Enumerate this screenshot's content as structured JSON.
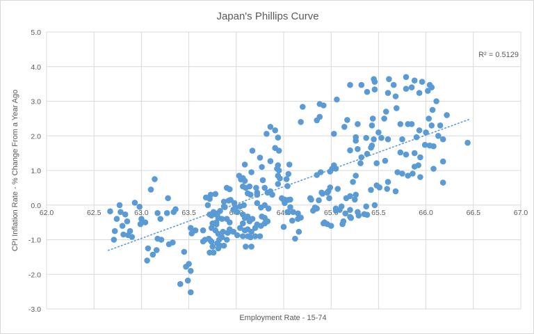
{
  "chart": {
    "title": "Japan's Phillips Curve",
    "xlabel": "Employment Rate - 15-74",
    "ylabel": "CPI Inflation Rate - % Change From a Year Ago",
    "r_squared_label": "R² = 0.5129"
  },
  "chart_data": {
    "type": "scatter",
    "title": "Japan's Phillips Curve",
    "xlabel": "Employment Rate - 15-74",
    "ylabel": "CPI Inflation Rate - % Change From a Year Ago",
    "xlim": [
      62.0,
      67.0
    ],
    "ylim": [
      -3.0,
      5.0
    ],
    "x_ticks": [
      "62.0",
      "62.5",
      "63.0",
      "63.5",
      "64.0",
      "64.5",
      "65.0",
      "65.5",
      "66.0",
      "66.5",
      "67.0"
    ],
    "y_ticks": [
      "5.0",
      "4.0",
      "3.0",
      "2.0",
      "1.0",
      "0.0",
      "-1.0",
      "-2.0",
      "-3.0"
    ],
    "grid": true,
    "legend": "none",
    "point_color": "#5B9BD5",
    "gridline_color": "#D9D9D9",
    "text_color": "#595959",
    "r_squared": 0.5129,
    "annotation": "R² = 0.5129",
    "trendline": {
      "style": "dotted",
      "color": "#5B9BD5",
      "x_start": 62.65,
      "y_start": -1.31,
      "x_end": 66.46,
      "y_end": 2.48
    },
    "points": [
      [
        62.67,
        -0.18
      ],
      [
        62.74,
        -0.4
      ],
      [
        62.71,
        -1.0
      ],
      [
        62.72,
        -0.75
      ],
      [
        62.77,
        0.0
      ],
      [
        62.78,
        -0.2
      ],
      [
        62.8,
        -0.6
      ],
      [
        62.81,
        -0.85
      ],
      [
        62.83,
        -0.27
      ],
      [
        62.85,
        -0.47
      ],
      [
        62.86,
        -0.87
      ],
      [
        62.88,
        -0.75
      ],
      [
        62.9,
        -0.92
      ],
      [
        62.93,
        0.07
      ],
      [
        62.98,
        -0.05
      ],
      [
        62.99,
        -0.55
      ],
      [
        63.0,
        -0.4
      ],
      [
        63.04,
        -0.5
      ],
      [
        63.06,
        -1.6
      ],
      [
        63.07,
        -1.25
      ],
      [
        63.12,
        -1.43
      ],
      [
        63.16,
        -1.3
      ],
      [
        63.17,
        -0.97
      ],
      [
        63.1,
        0.45
      ],
      [
        63.14,
        0.75
      ],
      [
        63.17,
        -0.23
      ],
      [
        63.2,
        -0.4
      ],
      [
        63.21,
        -1.0
      ],
      [
        63.27,
        -0.23
      ],
      [
        63.28,
        0.2
      ],
      [
        63.29,
        -1.13
      ],
      [
        63.33,
        -1.08
      ],
      [
        63.34,
        -0.2
      ],
      [
        63.36,
        -0.12
      ],
      [
        63.41,
        -2.28
      ],
      [
        63.45,
        -1.35
      ],
      [
        63.47,
        -1.78
      ],
      [
        63.49,
        -2.18
      ],
      [
        63.5,
        -1.7
      ],
      [
        63.52,
        -1.9
      ],
      [
        63.52,
        -2.52
      ],
      [
        63.52,
        -0.66
      ],
      [
        63.53,
        -0.82
      ],
      [
        63.57,
        -0.73
      ],
      [
        63.65,
        -0.73
      ],
      [
        63.65,
        -1.05
      ],
      [
        63.67,
        -1.0
      ],
      [
        63.71,
        -0.97
      ],
      [
        63.68,
        0.22
      ],
      [
        63.73,
        0.3
      ],
      [
        63.7,
        0.0
      ],
      [
        63.74,
        -0.3
      ],
      [
        63.78,
        -0.26
      ],
      [
        63.79,
        -0.56
      ],
      [
        63.78,
        -0.73
      ],
      [
        63.81,
        -0.83
      ],
      [
        63.73,
        -1.03
      ],
      [
        63.75,
        -1.2
      ],
      [
        63.81,
        -1.25
      ],
      [
        63.82,
        -1.0
      ],
      [
        63.83,
        -1.17
      ],
      [
        63.87,
        -1.17
      ],
      [
        63.74,
        -1.06
      ],
      [
        63.8,
        -1.1
      ],
      [
        63.72,
        -1.37
      ],
      [
        63.76,
        -1.37
      ],
      [
        63.87,
        0.1
      ],
      [
        63.87,
        -0.04
      ],
      [
        63.9,
        -0.4
      ],
      [
        63.93,
        -0.5
      ],
      [
        63.94,
        -0.75
      ],
      [
        63.97,
        -0.13
      ],
      [
        63.9,
        0.5
      ],
      [
        63.93,
        0.46
      ],
      [
        63.78,
        0.32
      ],
      [
        63.88,
        -0.06
      ],
      [
        63.92,
        0.13
      ],
      [
        63.94,
        0.15
      ],
      [
        63.98,
        0.06
      ],
      [
        63.99,
        -0.07
      ],
      [
        63.97,
        -0.77
      ],
      [
        63.93,
        -0.7
      ],
      [
        63.91,
        -0.8
      ],
      [
        63.86,
        -0.77
      ],
      [
        63.74,
        -0.66
      ],
      [
        63.85,
        -0.93
      ],
      [
        63.9,
        -1.0
      ],
      [
        63.8,
        -0.27
      ],
      [
        63.83,
        -0.17
      ],
      [
        63.76,
        -0.2
      ],
      [
        63.72,
        -0.27
      ],
      [
        63.81,
        -0.37
      ],
      [
        63.85,
        -0.4
      ],
      [
        63.79,
        -0.5
      ],
      [
        63.75,
        -0.53
      ],
      [
        63.72,
        0.18
      ],
      [
        64.05,
        0.74
      ],
      [
        64.09,
        0.7
      ],
      [
        64.07,
        0.54
      ],
      [
        64.1,
        0.5
      ],
      [
        64.14,
        0.54
      ],
      [
        64.12,
        0.34
      ],
      [
        64.15,
        0.3
      ],
      [
        64.21,
        0.5
      ],
      [
        64.22,
        0.3
      ],
      [
        64.28,
        0.72
      ],
      [
        64.3,
        0.5
      ],
      [
        64.33,
        0.36
      ],
      [
        64.36,
        0.4
      ],
      [
        64.22,
        0.06
      ],
      [
        64.26,
        -0.07
      ],
      [
        64.3,
        0.0
      ],
      [
        64.34,
        -0.1
      ],
      [
        64.08,
        0.0
      ],
      [
        64.04,
        -0.04
      ],
      [
        64.01,
        -0.2
      ],
      [
        64.07,
        -0.27
      ],
      [
        64.09,
        -0.37
      ],
      [
        64.12,
        -0.33
      ],
      [
        64.14,
        -0.47
      ],
      [
        64.17,
        -0.4
      ],
      [
        64.07,
        -0.53
      ],
      [
        64.04,
        -0.66
      ],
      [
        64.09,
        -0.73
      ],
      [
        64.12,
        -0.7
      ],
      [
        64.16,
        -0.77
      ],
      [
        64.2,
        -0.66
      ],
      [
        64.22,
        -0.56
      ],
      [
        64.26,
        -0.6
      ],
      [
        64.3,
        -0.53
      ],
      [
        64.33,
        -0.47
      ],
      [
        64.01,
        -0.87
      ],
      [
        64.07,
        -0.9
      ],
      [
        64.12,
        -0.9
      ],
      [
        64.15,
        -0.93
      ],
      [
        64.2,
        -0.9
      ],
      [
        64.25,
        -0.9
      ],
      [
        64.27,
        -0.33
      ],
      [
        64.3,
        -0.37
      ],
      [
        64.1,
        -1.2
      ],
      [
        64.16,
        -1.2
      ],
      [
        64.46,
        0.77
      ],
      [
        64.53,
        0.75
      ],
      [
        64.44,
        0.61
      ],
      [
        64.54,
        0.55
      ],
      [
        64.22,
        0.36
      ],
      [
        64.38,
        0.3
      ],
      [
        64.51,
        0.16
      ],
      [
        64.51,
        0.06
      ],
      [
        64.57,
        0.16
      ],
      [
        64.57,
        -0.06
      ],
      [
        64.65,
        -0.24
      ],
      [
        64.65,
        -0.4
      ],
      [
        64.59,
        -0.45
      ],
      [
        64.48,
        0.2
      ],
      [
        64.5,
        0.15
      ],
      [
        64.55,
        0.15
      ],
      [
        64.54,
        -0.2
      ],
      [
        64.6,
        -0.2
      ],
      [
        64.5,
        -0.63
      ],
      [
        64.66,
        -0.77
      ],
      [
        64.62,
        -0.97
      ],
      [
        64.68,
        -0.36
      ],
      [
        64.78,
        0.2
      ],
      [
        64.83,
        -0.07
      ],
      [
        64.91,
        0.33
      ],
      [
        64.92,
        -0.53
      ],
      [
        64.81,
        -0.16
      ],
      [
        64.85,
        -0.1
      ],
      [
        64.93,
        -0.5
      ],
      [
        64.96,
        -0.55
      ],
      [
        65.0,
        -0.6
      ],
      [
        64.9,
        0.36
      ],
      [
        64.87,
        0.14
      ],
      [
        64.97,
        0.4
      ],
      [
        64.98,
        0.2
      ],
      [
        64.79,
        0.16
      ],
      [
        65.12,
        -0.55
      ],
      [
        65.2,
        -0.34
      ],
      [
        65.29,
        -0.3
      ],
      [
        65.35,
        -0.26
      ],
      [
        65.38,
        -0.28
      ],
      [
        65.05,
        -0.16
      ],
      [
        65.11,
        -0.04
      ],
      [
        65.05,
        -0.1
      ],
      [
        65.09,
        -0.14
      ],
      [
        65.15,
        -0.24
      ],
      [
        65.2,
        -0.14
      ],
      [
        65.28,
        -0.2
      ],
      [
        65.37,
        -0.04
      ],
      [
        65.46,
        0.0
      ],
      [
        65.21,
        -0.37
      ],
      [
        65.13,
        -0.47
      ],
      [
        65.16,
        0.2
      ],
      [
        65.2,
        0.26
      ],
      [
        65.25,
        0.16
      ],
      [
        65.26,
        0.3
      ],
      [
        64.99,
        0.51
      ],
      [
        64.96,
        0.36
      ],
      [
        65.07,
        0.47
      ],
      [
        65.26,
        0.85
      ],
      [
        65.23,
        0.67
      ],
      [
        65.42,
        0.44
      ],
      [
        65.48,
        0.57
      ],
      [
        65.51,
        0.51
      ],
      [
        65.59,
        0.47
      ],
      [
        65.68,
        0.4
      ],
      [
        65.6,
        0.67
      ],
      [
        65.05,
        1.05
      ],
      [
        64.99,
        0.97
      ],
      [
        64.89,
        0.95
      ],
      [
        65.03,
        1.15
      ],
      [
        65.01,
        1.05
      ],
      [
        64.85,
        0.87
      ],
      [
        65.26,
        1.86
      ],
      [
        65.42,
        1.66
      ],
      [
        65.43,
        1.72
      ],
      [
        65.28,
        1.62
      ],
      [
        65.2,
        1.58
      ],
      [
        65.32,
        1.38
      ],
      [
        65.38,
        1.48
      ],
      [
        65.48,
        1.21
      ],
      [
        65.31,
        1.21
      ],
      [
        65.73,
        1.52
      ],
      [
        65.79,
        1.46
      ],
      [
        65.94,
        1.38
      ],
      [
        65.57,
        1.28
      ],
      [
        65.7,
        0.95
      ],
      [
        65.75,
        0.91
      ],
      [
        65.81,
        0.85
      ],
      [
        65.86,
        0.91
      ],
      [
        65.88,
        1.11
      ],
      [
        65.92,
        1.15
      ],
      [
        65.94,
        0.81
      ],
      [
        65.26,
        1.96
      ],
      [
        65.37,
        1.94
      ],
      [
        65.45,
        1.9
      ],
      [
        65.53,
        1.94
      ],
      [
        65.6,
        1.9
      ],
      [
        65.75,
        1.9
      ],
      [
        65.9,
        1.96
      ],
      [
        66.04,
        1.72
      ],
      [
        65.99,
        1.74
      ],
      [
        66.08,
        1.7
      ],
      [
        66.44,
        1.8
      ],
      [
        65.88,
        1.5
      ],
      [
        66.13,
        2.0
      ],
      [
        66.18,
        1.9
      ],
      [
        66.18,
        1.26
      ],
      [
        66.08,
        1.05
      ],
      [
        66.18,
        0.65
      ],
      [
        64.36,
        2.26
      ],
      [
        64.41,
        2.16
      ],
      [
        64.32,
        2.06
      ],
      [
        64.44,
        1.95
      ],
      [
        64.7,
        2.84
      ],
      [
        64.88,
        2.55
      ],
      [
        64.85,
        2.45
      ],
      [
        64.68,
        2.4
      ],
      [
        65.14,
        2.26
      ],
      [
        65.03,
        2.06
      ],
      [
        64.88,
        2.92
      ],
      [
        64.92,
        2.88
      ],
      [
        65.06,
        3.05
      ],
      [
        65.17,
        2.46
      ],
      [
        65.44,
        2.5
      ],
      [
        65.56,
        2.5
      ],
      [
        65.28,
        2.34
      ],
      [
        65.43,
        2.3
      ],
      [
        65.5,
        2.1
      ],
      [
        65.58,
        2.7
      ],
      [
        65.69,
        2.8
      ],
      [
        65.73,
        2.34
      ],
      [
        65.81,
        2.34
      ],
      [
        65.85,
        2.34
      ],
      [
        65.93,
        2.16
      ],
      [
        66.0,
        2.1
      ],
      [
        66.11,
        3.0
      ],
      [
        66.07,
        2.75
      ],
      [
        66.22,
        2.6
      ],
      [
        66.03,
        2.5
      ],
      [
        66.06,
        2.3
      ],
      [
        66.15,
        2.3
      ],
      [
        65.2,
        3.47
      ],
      [
        65.32,
        3.47
      ],
      [
        65.38,
        3.27
      ],
      [
        65.45,
        3.64
      ],
      [
        65.46,
        3.56
      ],
      [
        65.46,
        3.34
      ],
      [
        65.61,
        3.64
      ],
      [
        65.66,
        3.47
      ],
      [
        65.79,
        3.7
      ],
      [
        65.79,
        3.36
      ],
      [
        65.85,
        3.4
      ],
      [
        65.88,
        3.6
      ],
      [
        65.93,
        3.24
      ],
      [
        65.96,
        3.56
      ],
      [
        65.6,
        3.24
      ],
      [
        65.68,
        3.14
      ],
      [
        66.04,
        3.47
      ],
      [
        66.06,
        3.4
      ],
      [
        66.02,
        3.3
      ],
      [
        64.17,
        1.57
      ],
      [
        64.25,
        1.37
      ],
      [
        64.36,
        1.27
      ],
      [
        64.09,
        1.17
      ],
      [
        64.27,
        1.1
      ],
      [
        64.44,
        1.15
      ],
      [
        64.43,
        1.05
      ],
      [
        64.45,
        1.0
      ],
      [
        64.56,
        1.17
      ],
      [
        64.16,
        0.95
      ],
      [
        64.44,
        0.85
      ],
      [
        64.55,
        0.9
      ],
      [
        64.03,
        0.85
      ],
      [
        64.07,
        0.78
      ],
      [
        64.45,
        1.57
      ],
      [
        64.41,
        1.65
      ]
    ]
  }
}
